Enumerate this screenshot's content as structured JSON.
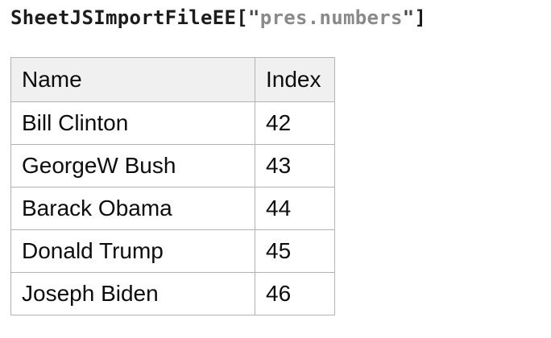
{
  "title": {
    "code_name": "SheetJSImportFileEE",
    "bracket_open": "[",
    "quote": "\"",
    "string_value": "pres.numbers",
    "bracket_close": "]"
  },
  "table": {
    "columns": [
      "Name",
      "Index"
    ],
    "rows": [
      {
        "name": "Bill Clinton",
        "index": "42"
      },
      {
        "name": "GeorgeW Bush",
        "index": "43"
      },
      {
        "name": "Barack Obama",
        "index": "44"
      },
      {
        "name": "Donald Trump",
        "index": "45"
      },
      {
        "name": "Joseph Biden",
        "index": "46"
      }
    ]
  },
  "colors": {
    "code_text": "#1c1c1c",
    "quote_text": "#474747",
    "string_text": "#8a8a8a",
    "table_border": "#b3b3b3",
    "header_bg": "#f0f0f0",
    "cell_bg": "#ffffff",
    "cell_text": "#0d0d0d",
    "page_bg": "#ffffff"
  }
}
